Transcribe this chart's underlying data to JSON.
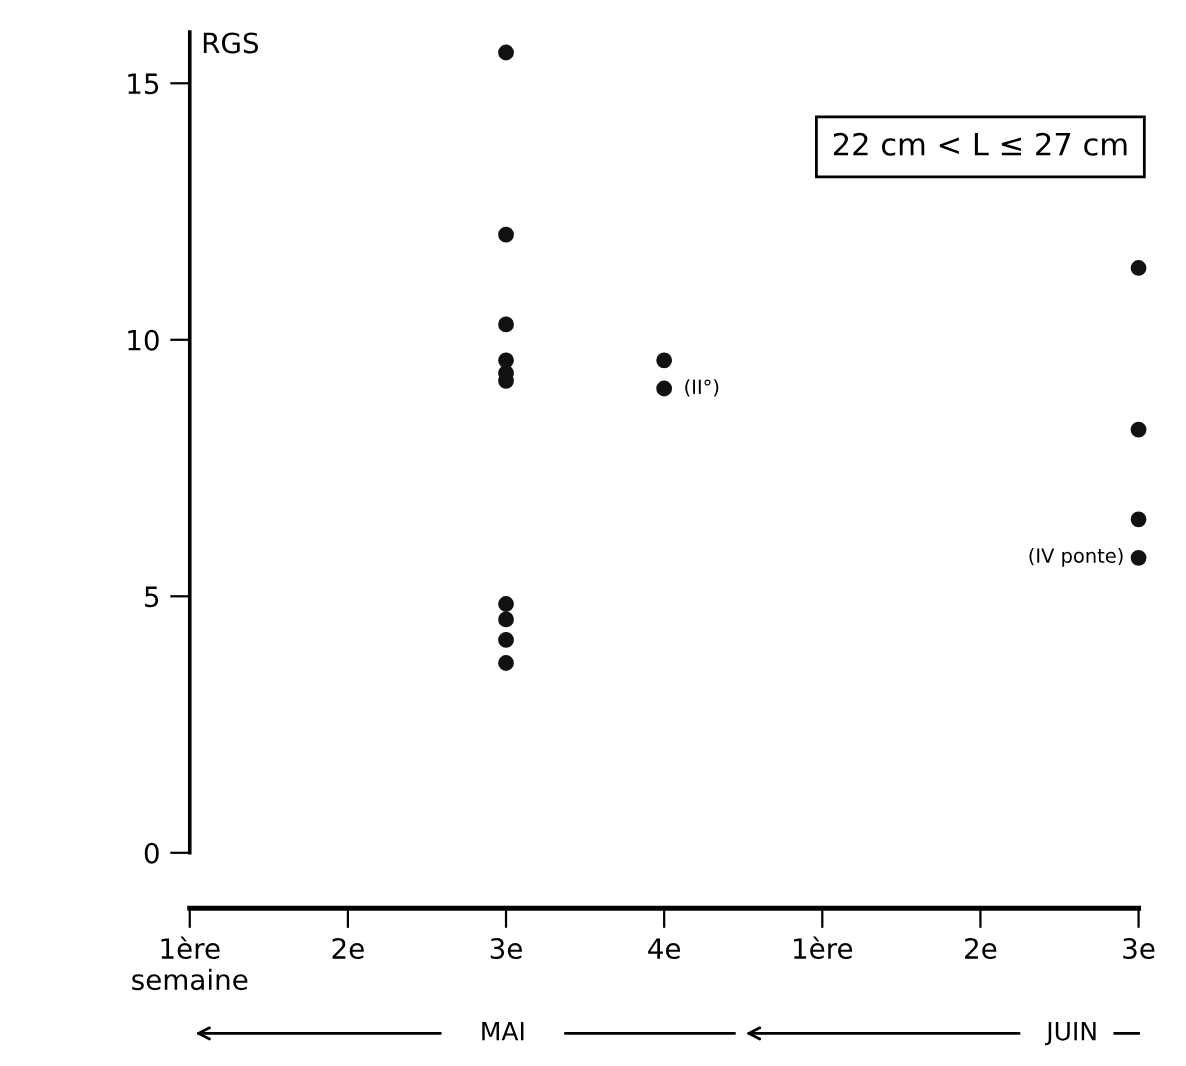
{
  "chart_data": {
    "type": "scatter",
    "ylabel": "RGS",
    "marker": "circle",
    "grid": false,
    "legend": false,
    "categories": [
      "1ère\nsemaine",
      "2e",
      "3e",
      "4e",
      "1ère",
      "2e",
      "3e"
    ],
    "ylim": [
      0,
      16
    ],
    "yticks": [
      0,
      5,
      10,
      15
    ],
    "series": [
      {
        "color": "#111111",
        "values": [
          null,
          null,
          15.6,
          9.6,
          null,
          null,
          11.4
        ]
      },
      {
        "color": "#111111",
        "values": [
          null,
          null,
          12.05,
          9.05,
          null,
          null,
          8.25
        ]
      },
      {
        "color": "#111111",
        "values": [
          null,
          null,
          10.3,
          null,
          null,
          null,
          6.5
        ]
      },
      {
        "color": "#111111",
        "values": [
          null,
          null,
          9.6,
          null,
          null,
          null,
          5.75
        ]
      },
      {
        "color": "#111111",
        "values": [
          null,
          null,
          9.35,
          null,
          null,
          null,
          null
        ]
      },
      {
        "color": "#111111",
        "values": [
          null,
          null,
          9.2,
          null,
          null,
          null,
          null
        ]
      },
      {
        "color": "#111111",
        "values": [
          null,
          null,
          4.85,
          null,
          null,
          null,
          null
        ]
      },
      {
        "color": "#111111",
        "values": [
          null,
          null,
          4.55,
          null,
          null,
          null,
          null
        ]
      },
      {
        "color": "#111111",
        "values": [
          null,
          null,
          4.15,
          null,
          null,
          null,
          null
        ]
      },
      {
        "color": "#111111",
        "values": [
          null,
          null,
          3.7,
          null,
          null,
          null,
          null
        ]
      }
    ],
    "annotations": [
      "22 cm < L ≤ 27 cm",
      {
        "text": "(II°)",
        "x": "4e",
        "y": 9.05
      },
      "(IV ponte)",
      "MAI",
      "JUIN"
    ]
  }
}
